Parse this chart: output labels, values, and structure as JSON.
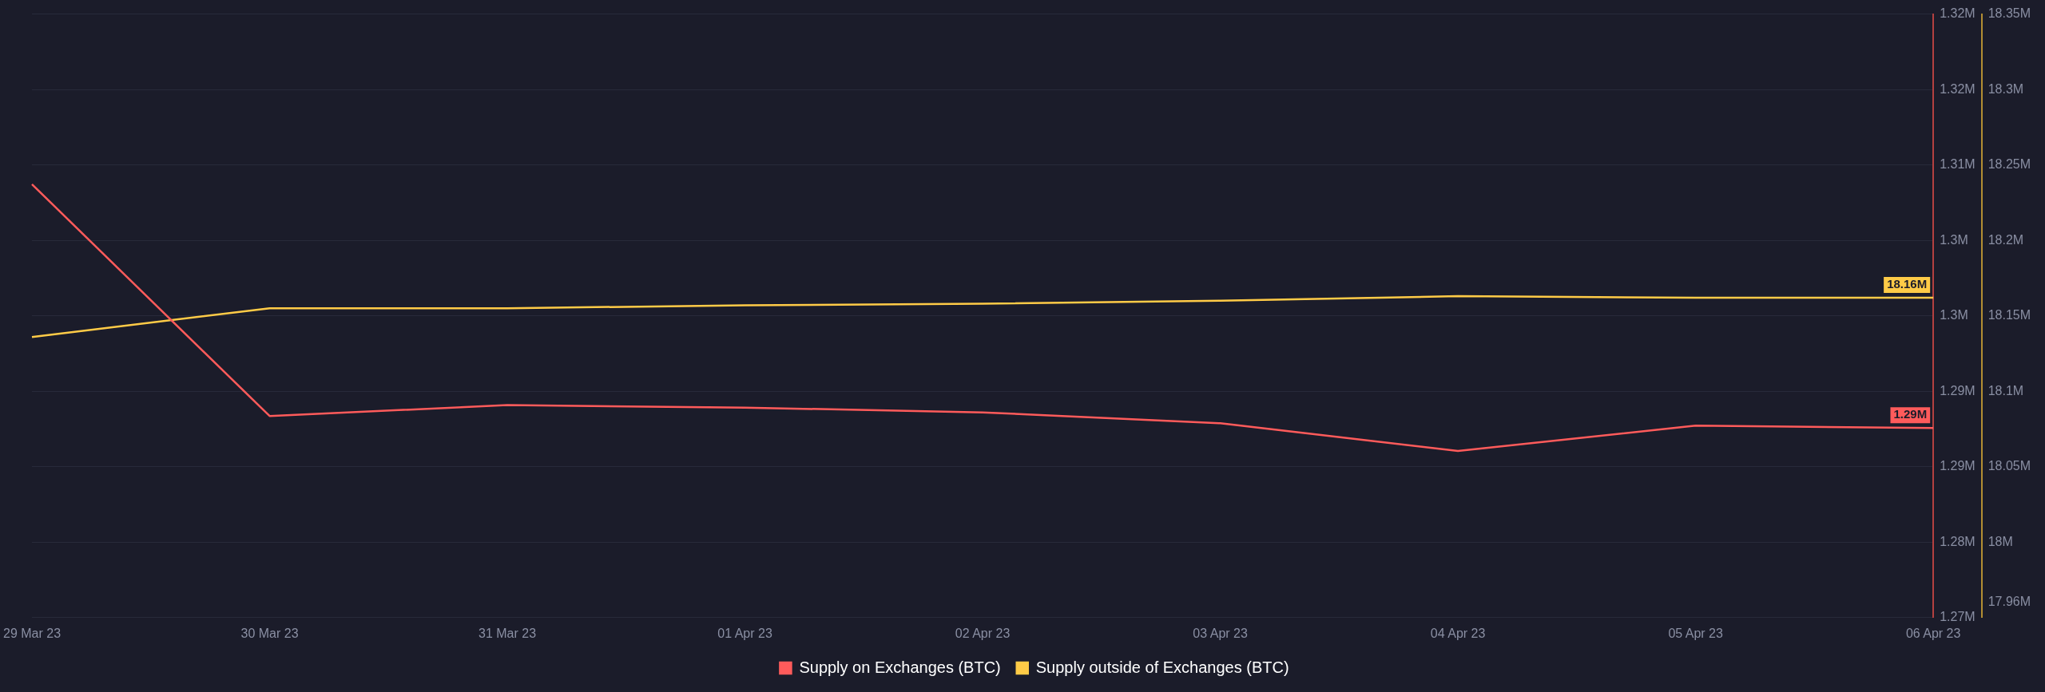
{
  "chart_data": {
    "type": "line",
    "categories": [
      "29 Mar 23",
      "30 Mar 23",
      "31 Mar 23",
      "01 Apr 23",
      "02 Apr 23",
      "03 Apr 23",
      "04 Apr 23",
      "05 Apr 23",
      "06 Apr 23"
    ],
    "series": [
      {
        "name": "Supply on Exchanges (BTC)",
        "color": "#ff5b5b",
        "values": [
          1.3084,
          1.2892,
          1.2901,
          1.2899,
          1.2895,
          1.2886,
          1.2863,
          1.2884,
          1.2882
        ],
        "value_labels": [
          null,
          null,
          null,
          null,
          null,
          null,
          null,
          null,
          "1.29M"
        ]
      },
      {
        "name": "Supply outside of Exchanges (BTC)",
        "color": "#ffcb47",
        "axis": "y2",
        "values": [
          18.136,
          18.155,
          18.155,
          18.157,
          18.158,
          18.16,
          18.163,
          18.162,
          18.162
        ],
        "value_labels": [
          null,
          null,
          null,
          null,
          null,
          null,
          null,
          null,
          "18.16M"
        ]
      }
    ],
    "ylim": [
      1.2725,
      1.3225
    ],
    "yticks": [
      {
        "value": 1.2725,
        "label": "1.27M"
      },
      {
        "value": 1.27875,
        "label": "1.28M"
      },
      {
        "value": 1.285,
        "label": "1.29M"
      },
      {
        "value": 1.29125,
        "label": "1.29M"
      },
      {
        "value": 1.2975,
        "label": "1.3M"
      },
      {
        "value": 1.30375,
        "label": "1.3M"
      },
      {
        "value": 1.31,
        "label": "1.31M"
      },
      {
        "value": 1.31625,
        "label": "1.32M"
      },
      {
        "value": 1.3225,
        "label": "1.32M"
      }
    ],
    "y2lim": [
      17.95,
      18.35
    ],
    "y2ticks": [
      {
        "value": 17.96,
        "label": "17.96M"
      },
      {
        "value": 18,
        "label": "18M"
      },
      {
        "value": 18.05,
        "label": "18.05M"
      },
      {
        "value": 18.1,
        "label": "18.1M"
      },
      {
        "value": 18.15,
        "label": "18.15M"
      },
      {
        "value": 18.2,
        "label": "18.2M"
      },
      {
        "value": 18.25,
        "label": "18.25M"
      },
      {
        "value": 18.3,
        "label": "18.3M"
      },
      {
        "value": 18.35,
        "label": "18.35M"
      }
    ],
    "grid": "y",
    "legend": "bottom",
    "marker": "none",
    "line_style": "solid"
  }
}
